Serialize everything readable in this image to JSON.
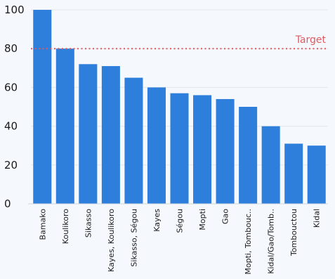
{
  "chart_data": {
    "type": "bar",
    "title": "",
    "xlabel": "",
    "ylabel": "",
    "categories": [
      "Bamako",
      "Koulikoro",
      "Sikasso",
      "Kayes, Koulikoro",
      "Sikasso, Ségou",
      "Kayes",
      "Ségou",
      "Mopti",
      "Gao",
      "Mopti, Tombouc..",
      "Kidal/Gao/Tomb..",
      "Tombouctou",
      "Kidal"
    ],
    "values": [
      100,
      80,
      72,
      71,
      65,
      60,
      57,
      56,
      54,
      50,
      40,
      31,
      30
    ],
    "ylim": [
      0,
      100
    ],
    "yticks": [
      0,
      20,
      40,
      60,
      80,
      100
    ],
    "grid": true,
    "bar_color": "#2e7fdb",
    "target": {
      "value": 80,
      "label": "Target",
      "color": "#e05a62"
    }
  }
}
